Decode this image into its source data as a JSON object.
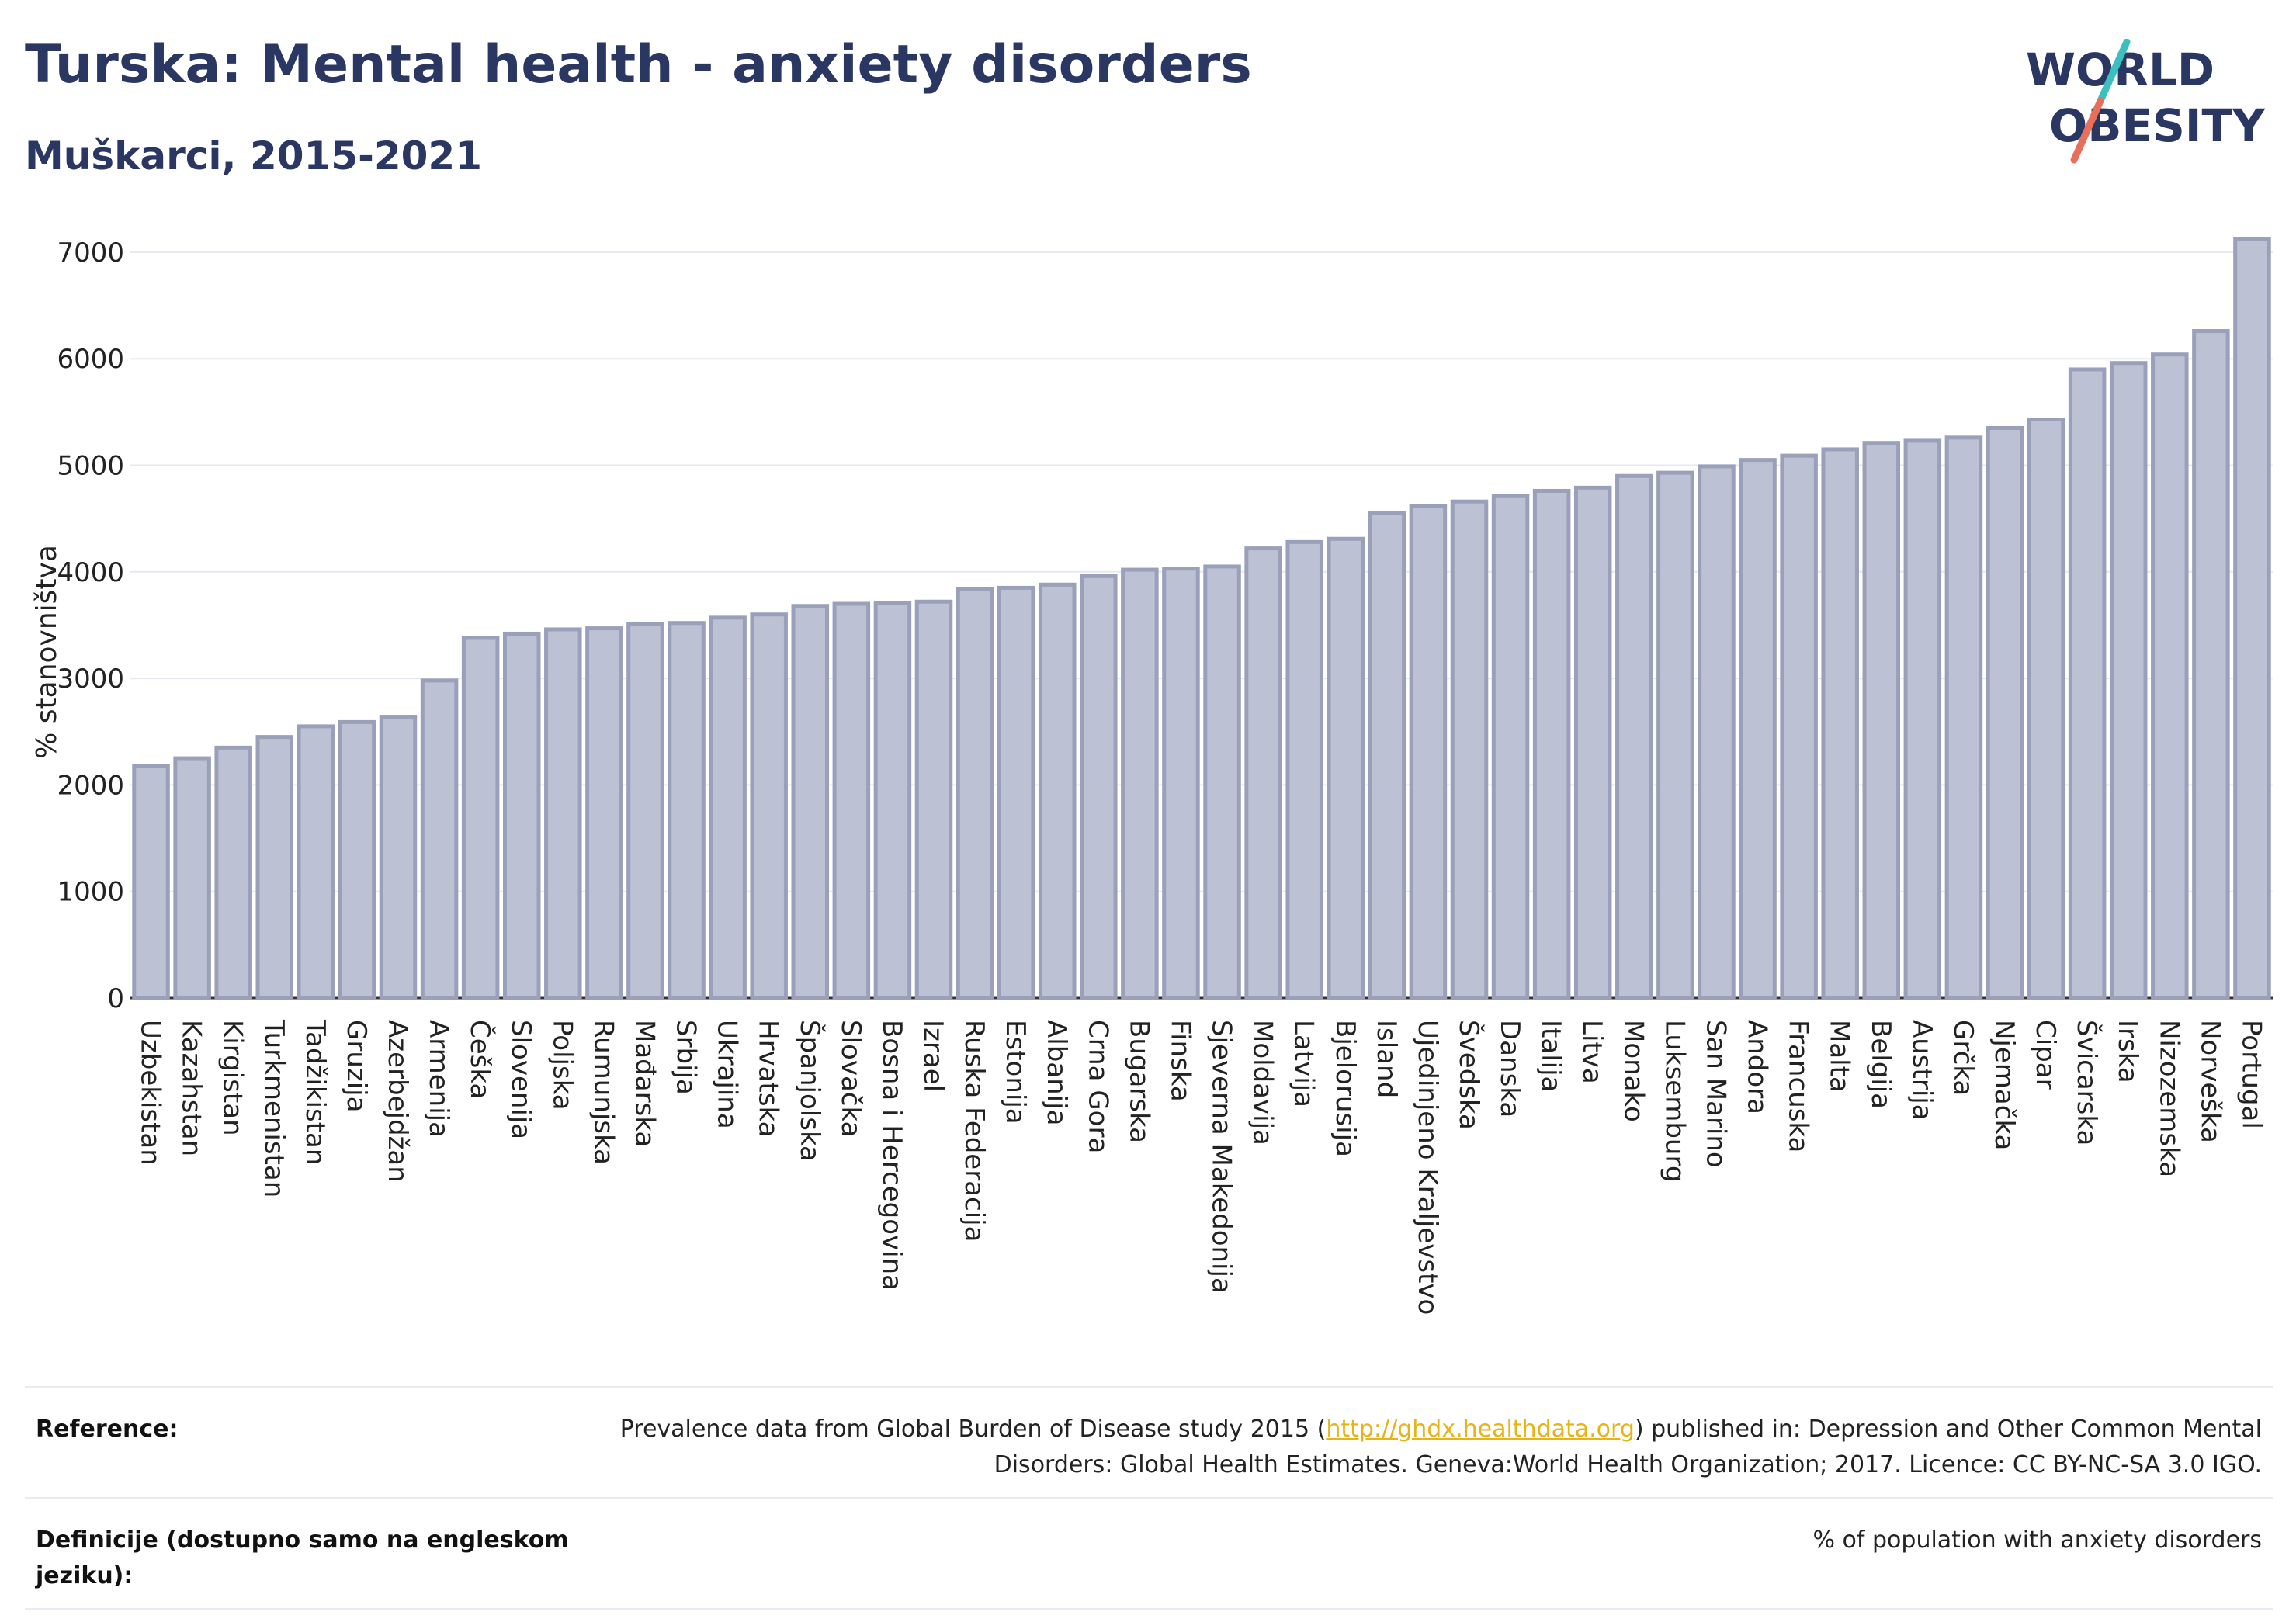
{
  "header": {
    "title": "Turska: Mental health - anxiety disorders",
    "subtitle": "Muškarci, 2015-2021"
  },
  "logo": {
    "line1": "WORLD",
    "line2": "OBESITY",
    "colors": {
      "text": "#2b3763",
      "slash_top": "#3bbfbf",
      "slash_bottom": "#e8705a"
    }
  },
  "chart_data": {
    "type": "bar",
    "ylabel": "% stanovništva",
    "ylim": [
      0,
      7400
    ],
    "yticks": [
      0,
      1000,
      2000,
      3000,
      4000,
      5000,
      6000,
      7000
    ],
    "grid": true,
    "bar_color": "#bcc1d3",
    "bar_border": "#9aa0ba",
    "categories": [
      "Uzbekistan",
      "Kazahstan",
      "Kirgistan",
      "Turkmenistan",
      "Tadžikistan",
      "Gruzija",
      "Azerbejdžan",
      "Armenija",
      "Češka",
      "Slovenija",
      "Poljska",
      "Rumunjska",
      "Mađarska",
      "Srbija",
      "Ukrajina",
      "Hrvatska",
      "Španjolska",
      "Slovačka",
      "Bosna i Hercegovina",
      "Izrael",
      "Ruska Federacija",
      "Estonija",
      "Albanija",
      "Crna Gora",
      "Bugarska",
      "Finska",
      "Sjeverna Makedonija",
      "Moldavija",
      "Latvija",
      "Bjelorusija",
      "Island",
      "Ujedinjeno Kraljevstvo",
      "Švedska",
      "Danska",
      "Italija",
      "Litva",
      "Monako",
      "Luksemburg",
      "San Marino",
      "Andora",
      "Francuska",
      "Malta",
      "Belgija",
      "Austrija",
      "Grčka",
      "Njemačka",
      "Cipar",
      "Švicarska",
      "Irska",
      "Nizozemska",
      "Norveška",
      "Portugal"
    ],
    "values": [
      2180,
      2250,
      2350,
      2450,
      2550,
      2590,
      2640,
      2980,
      3380,
      3420,
      3460,
      3470,
      3510,
      3520,
      3570,
      3600,
      3680,
      3700,
      3710,
      3720,
      3840,
      3850,
      3880,
      3960,
      4020,
      4030,
      4050,
      4220,
      4280,
      4310,
      4550,
      4620,
      4660,
      4710,
      4760,
      4790,
      4900,
      4930,
      4990,
      5050,
      5090,
      5150,
      5210,
      5230,
      5260,
      5350,
      5430,
      5900,
      5960,
      6040,
      6260,
      7120
    ]
  },
  "footer": {
    "reference_label": "Reference:",
    "reference_text_1": "Prevalence data from Global Burden of Disease study 2015 (",
    "reference_link": "http://ghdx.healthdata.org",
    "reference_text_2": ") published in: Depression and Other Common Mental Disorders: Global Health Estimates. Geneva:World Health Organization; 2017. Licence: CC BY-NC-SA 3.0 IGO.",
    "definition_label": "Definicije (dostupno samo na engleskom jeziku):",
    "definition_text": "% of population with anxiety disorders"
  }
}
